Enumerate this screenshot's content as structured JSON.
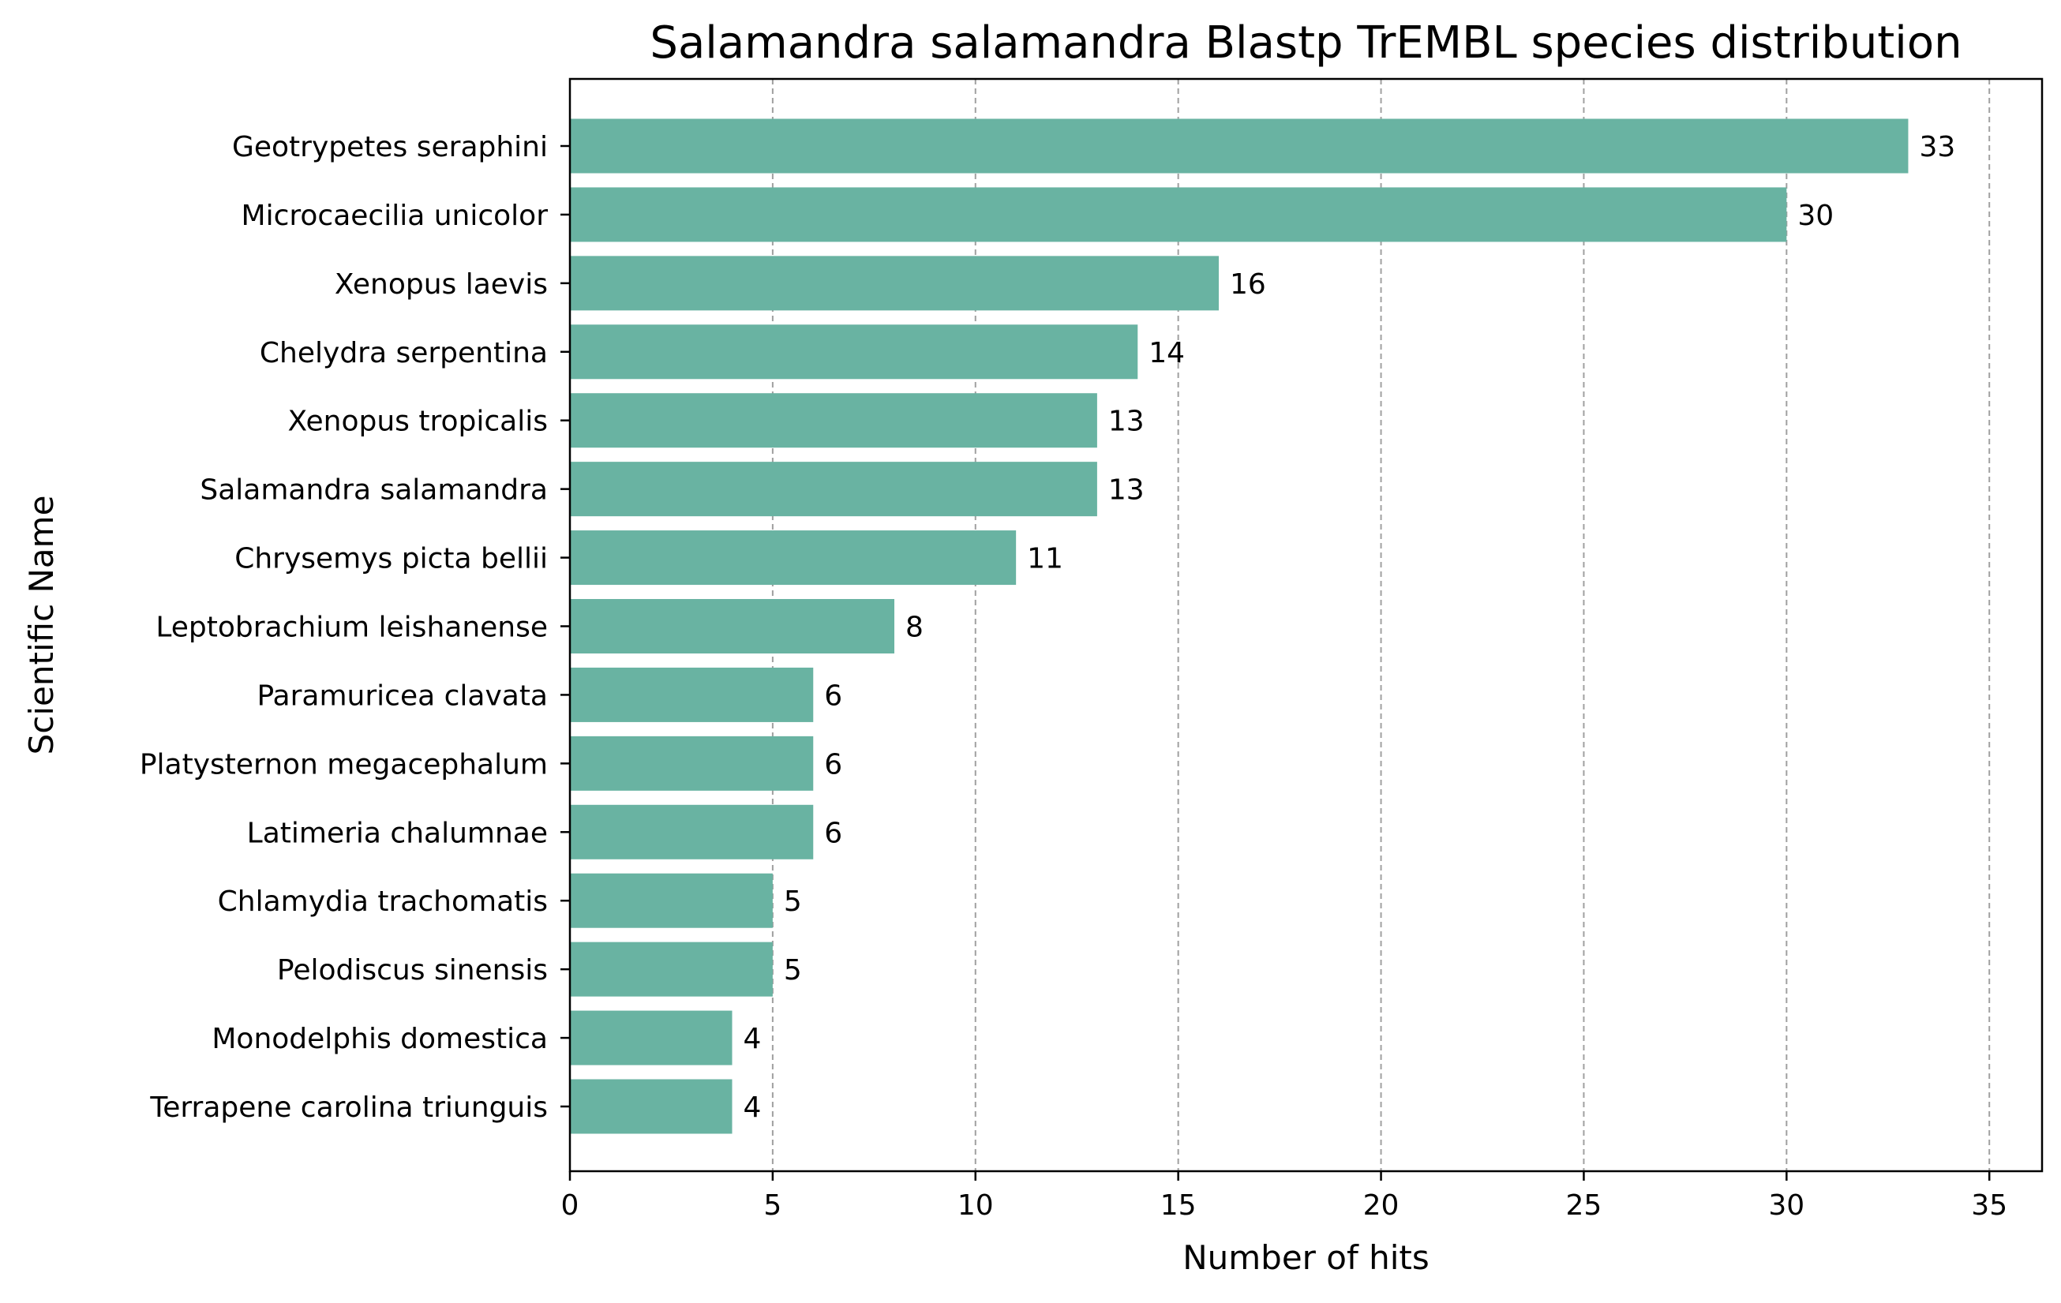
{
  "chart_data": {
    "type": "bar",
    "orientation": "horizontal",
    "title": "Salamandra salamandra Blastp TrEMBL species distribution",
    "xlabel": "Number of hits",
    "ylabel": "Scientific Name",
    "categories": [
      "Geotrypetes seraphini",
      "Microcaecilia unicolor",
      "Xenopus laevis",
      "Chelydra serpentina",
      "Xenopus tropicalis",
      "Salamandra salamandra",
      "Chrysemys picta bellii",
      "Leptobrachium leishanense",
      "Paramuricea clavata",
      "Platysternon megacephalum",
      "Latimeria chalumnae",
      "Chlamydia trachomatis",
      "Pelodiscus sinensis",
      "Monodelphis domestica",
      "Terrapene carolina triunguis"
    ],
    "values": [
      33,
      30,
      16,
      14,
      13,
      13,
      11,
      8,
      6,
      6,
      6,
      5,
      5,
      4,
      4
    ],
    "xlim": [
      0,
      36.3
    ],
    "xticks": [
      0,
      5,
      10,
      15,
      20,
      25,
      30,
      35
    ],
    "grid": "x-dashed",
    "bar_color": "#69b3a2",
    "grid_color": "#a0a0a0"
  }
}
